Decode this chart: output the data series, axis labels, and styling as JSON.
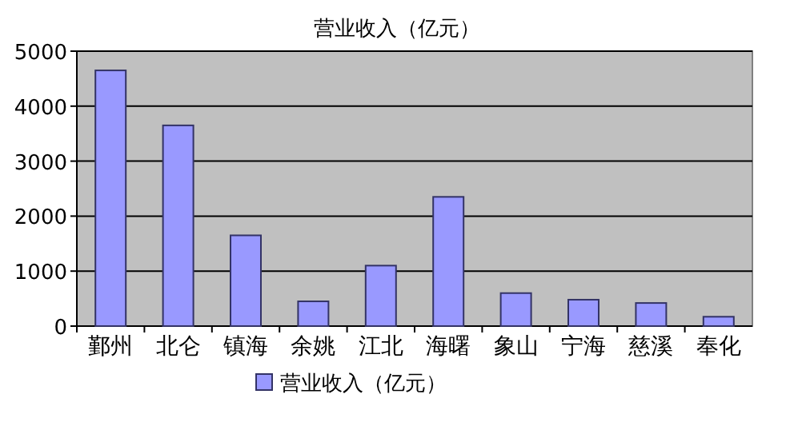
{
  "chart_data": {
    "type": "bar",
    "title": "营业收入（亿元）",
    "categories": [
      "鄞州",
      "北仑",
      "镇海",
      "余姚",
      "江北",
      "海曙",
      "象山",
      "宁海",
      "慈溪",
      "奉化"
    ],
    "series": [
      {
        "name": "营业收入（亿元）",
        "color": "#9999ff",
        "values": [
          4650,
          3650,
          1650,
          450,
          1100,
          2350,
          600,
          480,
          420,
          170
        ]
      }
    ],
    "ylim": [
      0,
      5000
    ],
    "yticks": [
      0,
      1000,
      2000,
      3000,
      4000,
      5000
    ],
    "grid": "y",
    "legend": "bottom"
  }
}
